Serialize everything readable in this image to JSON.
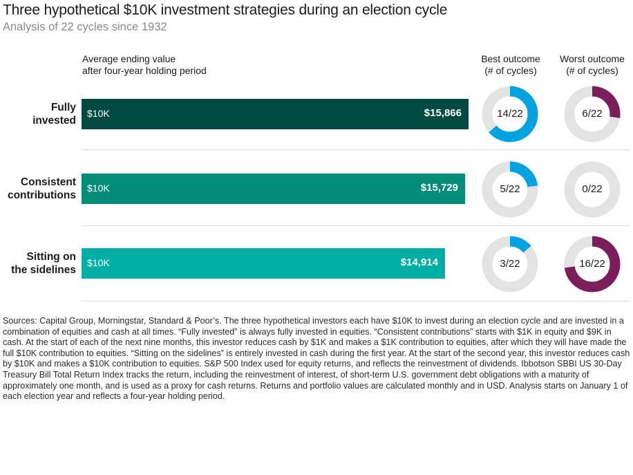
{
  "title": "Three hypothetical $10K investment strategies during an election cycle",
  "subtitle": "Analysis of 22 cycles since 1932",
  "headers": {
    "bar_line1": "Average ending value",
    "bar_line2": "after four-year holding period",
    "best_line1": "Best outcome",
    "best_line2": "(# of cycles)",
    "worst_line1": "Worst outcome",
    "worst_line2": "(# of cycles)"
  },
  "colors": {
    "fully_invested": "#004a41",
    "consistent": "#008c77",
    "sidelines": "#00aea6",
    "best_arc": "#00a3e0",
    "worst_arc": "#7b1e5c",
    "track": "#e3e3e3"
  },
  "rows": [
    {
      "label_line1": "Fully",
      "label_line2": "invested",
      "start": "$10K",
      "end": "$15,866",
      "best": "14/22",
      "worst": "6/22"
    },
    {
      "label_line1": "Consistent",
      "label_line2": "contributions",
      "start": "$10K",
      "end": "$15,729",
      "best": "5/22",
      "worst": "0/22"
    },
    {
      "label_line1": "Sitting on",
      "label_line2": "the sidelines",
      "start": "$10K",
      "end": "$14,914",
      "best": "3/22",
      "worst": "16/22"
    }
  ],
  "chart_data": {
    "type": "bar",
    "orientation": "horizontal",
    "categories": [
      "Fully invested",
      "Consistent contributions",
      "Sitting on the sidelines"
    ],
    "values": [
      15866,
      15729,
      14914
    ],
    "baseline": 10000,
    "best_outcome_cycles": [
      14,
      5,
      3
    ],
    "worst_outcome_cycles": [
      6,
      0,
      16
    ],
    "total_cycles": 22
  },
  "footnote": "Sources: Capital Group, Morningstar, Standard & Poor’s. The three hypothetical investors each have $10K to invest during an election cycle and are invested in a combination of equities and cash at all times. “Fully invested” is always fully invested in equities. “Consistent contributions” starts with $1K in equity and $9K in cash. At the start of each of the next nine months, this investor reduces cash by $1K and makes a $1K contribution to equities, after which they will have made the full $10K contribution to equities. “Sitting on the sidelines” is entirely invested in cash during the first year. At the start of the second year, this investor reduces cash by $10K and makes a $10K contribution to equities. S&P 500 Index used for equity returns, and reflects the reinvestment of dividends. Ibbotson SBBI US 30-Day Treasury Bill Total Return Index tracks the return, including the reinvestment of interest, of short-term U.S. government debt obligations with a maturity of approximately one month, and is used as a proxy for cash returns. Returns and portfolio values are calculated monthly and in USD. Analysis starts on January 1 of each election year and reflects a four-year holding period."
}
